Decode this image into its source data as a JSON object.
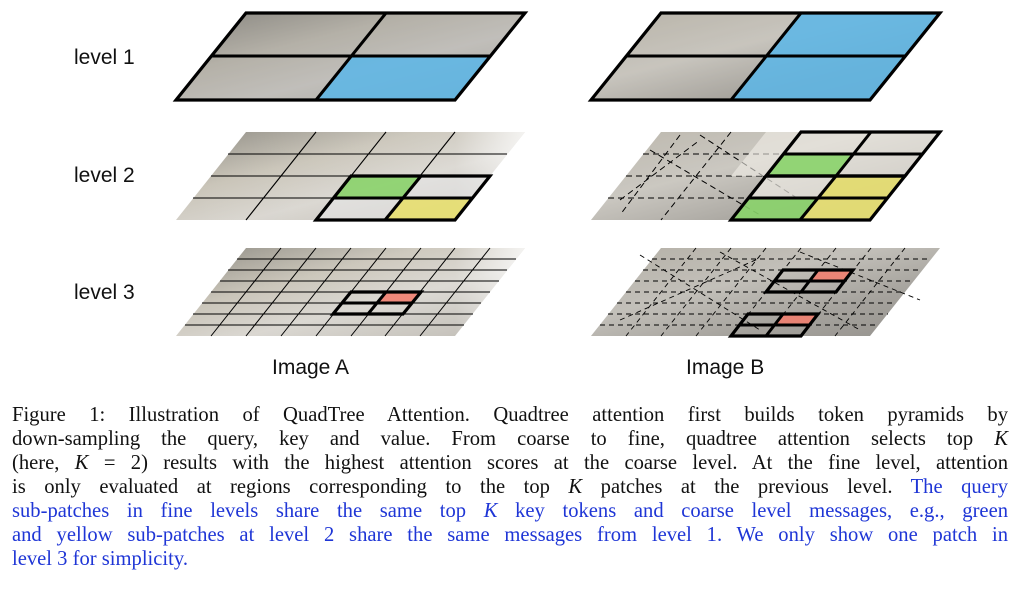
{
  "figure": {
    "level_labels": [
      "level 1",
      "level 2",
      "level 3"
    ],
    "image_labels": [
      "Image A",
      "Image B"
    ],
    "colors": {
      "blue_patch": "#5bb6e8",
      "green_patch": "#8ad36a",
      "yellow_patch": "#e8e070",
      "red_patch": "#f08070",
      "grid_line": "#000000",
      "photo_tint": "#9c9a94"
    }
  },
  "caption": {
    "l1": "Figure 1: Illustration of QuadTree Attention. Quadtree attention first builds token pyramids by",
    "l2a": "down-sampling the query, key and value. From coarse to fine, quadtree attention selects top ",
    "l2k": "K",
    "l3a": "(here, ",
    "l3k": "K",
    "l3b": " = 2) results with the highest attention scores at the coarse level. At the fine level, attention",
    "l4a": "is only evaluated at regions corresponding to the top ",
    "l4k": "K",
    "l4b": " patches at the previous level. ",
    "l4c": "The query",
    "l5a": "sub-patches in fine levels share the same top ",
    "l5k": "K",
    "l5b": " key tokens and coarse level messages, e.g., green",
    "l6": "and yellow sub-patches at level 2 share the same messages from level 1. We only show one patch in",
    "l7": "level 3 for simplicity."
  }
}
